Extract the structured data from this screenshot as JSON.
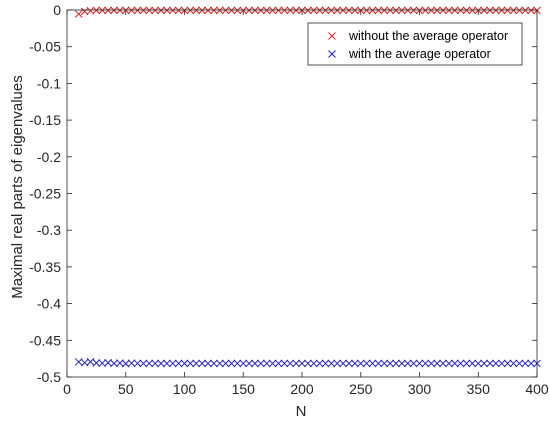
{
  "chart_data": {
    "type": "scatter",
    "xlabel": "N",
    "ylabel": "Maximal real parts of eigenvalues",
    "xlim": [
      0,
      400
    ],
    "ylim": [
      -0.5,
      0
    ],
    "xticks": [
      0,
      50,
      100,
      150,
      200,
      250,
      300,
      350,
      400
    ],
    "yticks": [
      0,
      -0.05,
      -0.1,
      -0.15,
      -0.2,
      -0.25,
      -0.3,
      -0.35,
      -0.4,
      -0.45,
      -0.5
    ],
    "xtick_labels": [
      "0",
      "50",
      "100",
      "150",
      "200",
      "250",
      "300",
      "350",
      "400"
    ],
    "ytick_labels": [
      "0",
      "-0.05",
      "-0.1",
      "-0.15",
      "-0.2",
      "-0.25",
      "-0.3",
      "-0.35",
      "-0.4",
      "-0.45",
      "-0.5"
    ],
    "grid": false,
    "legend_position": "top-right",
    "marker": "x",
    "series": [
      {
        "name": "without the average operator",
        "color": "#d62728",
        "x_start": 10,
        "x_end": 400,
        "x_step": 5,
        "y_points": [
          [
            10,
            -0.0055
          ],
          [
            15,
            -0.002
          ],
          [
            20,
            -0.001
          ]
        ],
        "y_rest": -0.0005
      },
      {
        "name": "with the average operator",
        "color": "#1f1fbf",
        "x_start": 10,
        "x_end": 400,
        "x_step": 5,
        "y_points": [
          [
            10,
            -0.4795
          ],
          [
            15,
            -0.4805
          ],
          [
            20,
            -0.4792
          ],
          [
            25,
            -0.4808
          ],
          [
            30,
            -0.4812
          ],
          [
            35,
            -0.4806
          ],
          [
            40,
            -0.4815
          ],
          [
            45,
            -0.481
          ],
          [
            50,
            -0.4818
          ],
          [
            55,
            -0.4812
          ]
        ],
        "y_rest": -0.4815
      }
    ]
  }
}
